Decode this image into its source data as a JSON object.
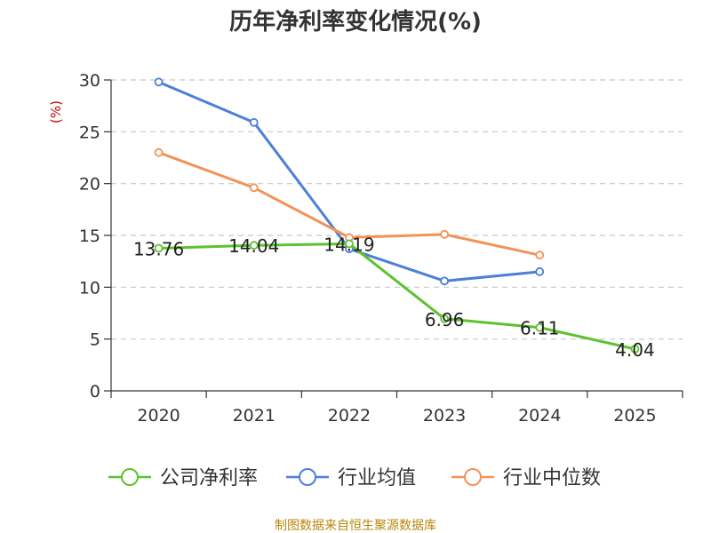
{
  "chart_data": {
    "type": "line",
    "title": "历年净利率变化情况(%)",
    "ylabel": "(%)",
    "xlabel": "",
    "categories": [
      "2020",
      "2021",
      "2022",
      "2023",
      "2024",
      "2025"
    ],
    "ylim": [
      0,
      30
    ],
    "yticks": [
      0,
      5,
      10,
      15,
      20,
      25,
      30
    ],
    "grid": true,
    "legend_position": "bottom",
    "series": [
      {
        "name": "公司净利率",
        "color": "#5cc22e",
        "values": [
          13.76,
          14.04,
          14.19,
          6.96,
          6.11,
          4.04
        ],
        "labels": [
          "13.76",
          "14.04",
          "14.19",
          "6.96",
          "6.11",
          "4.04"
        ]
      },
      {
        "name": "行业均值",
        "color": "#4e7fd8",
        "values": [
          29.8,
          25.9,
          13.7,
          10.6,
          11.5,
          null
        ]
      },
      {
        "name": "行业中位数",
        "color": "#f39257",
        "values": [
          23.0,
          19.6,
          14.8,
          15.1,
          13.1,
          null
        ]
      }
    ]
  },
  "footer": {
    "source": "制图数据来自恒生聚源数据库"
  }
}
